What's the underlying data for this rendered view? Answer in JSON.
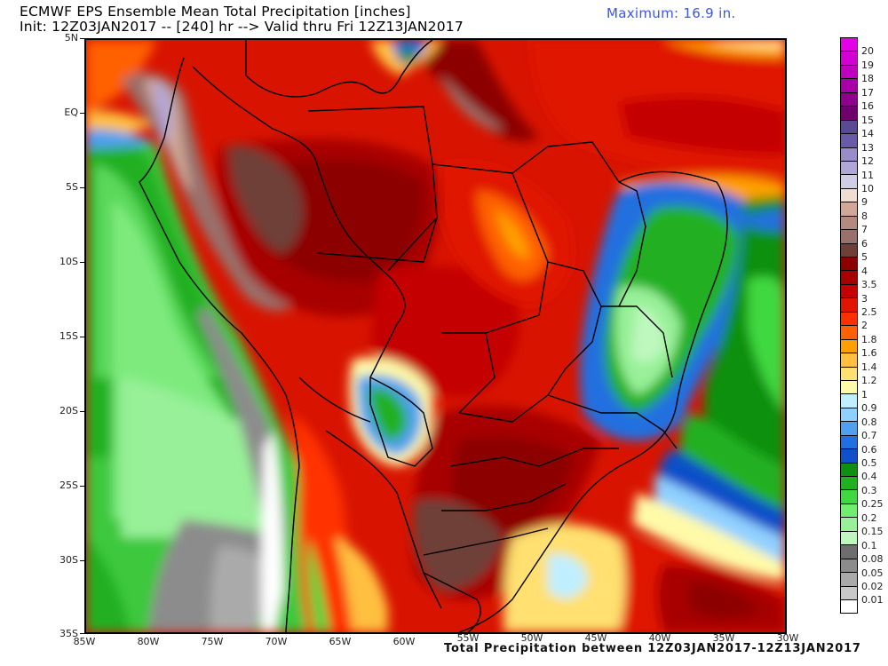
{
  "header": {
    "title_line1": "ECMWF EPS Ensemble Mean Total Precipitation [inches]",
    "title_line2": "Init: 12Z03JAN2017 -- [240] hr --> Valid thru Fri 12Z13JAN2017",
    "maximum": "Maximum: 16.9 in."
  },
  "footer": {
    "caption": "Total Precipitation between 12Z03JAN2017-12Z13JAN2017"
  },
  "map": {
    "region": "South America (Brazil focus)",
    "variable": "Total Precipitation",
    "units": "inches",
    "lat_labels": [
      "5N",
      "EQ",
      "5S",
      "10S",
      "15S",
      "20S",
      "25S",
      "30S",
      "35S"
    ],
    "lon_labels": [
      "85W",
      "80W",
      "75W",
      "70W",
      "65W",
      "60W",
      "55W",
      "50W",
      "45W",
      "40W",
      "35W",
      "30W"
    ],
    "extent": {
      "lon_min": -85,
      "lon_max": -30,
      "lat_min": -35,
      "lat_max": 5
    }
  },
  "colorbar": {
    "labels": [
      "20",
      "19",
      "18",
      "17",
      "16",
      "15",
      "14",
      "13",
      "12",
      "11",
      "10",
      "9",
      "8",
      "7",
      "6",
      "5",
      "4",
      "3.5",
      "3",
      "2.5",
      "2",
      "1.8",
      "1.6",
      "1.4",
      "1.2",
      "1",
      "0.9",
      "0.8",
      "0.7",
      "0.6",
      "0.5",
      "0.4",
      "0.3",
      "0.25",
      "0.2",
      "0.15",
      "0.1",
      "0.08",
      "0.05",
      "0.02",
      "0.01"
    ],
    "colors": [
      "#e600e6",
      "#d200d2",
      "#c000c0",
      "#a800a8",
      "#8c008c",
      "#70006e",
      "#5a4a96",
      "#6a5aaa",
      "#9a8cc8",
      "#b0a6d8",
      "#d0cce6",
      "#f0ddd2",
      "#d0a898",
      "#b48a80",
      "#9a706a",
      "#6e4038",
      "#8c0000",
      "#a80000",
      "#c40000",
      "#e01400",
      "#ff3000",
      "#ff6000",
      "#ffa000",
      "#ffc040",
      "#ffe070",
      "#fffaa8",
      "#bfefff",
      "#90d0ff",
      "#50a0f0",
      "#2070e0",
      "#1050c8",
      "#109010",
      "#20b020",
      "#40d840",
      "#70ee70",
      "#98f098",
      "#bef8be",
      "#6e6e6e",
      "#8c8c8c",
      "#aaaaaa",
      "#c8c8c8",
      "#ffffff"
    ]
  }
}
